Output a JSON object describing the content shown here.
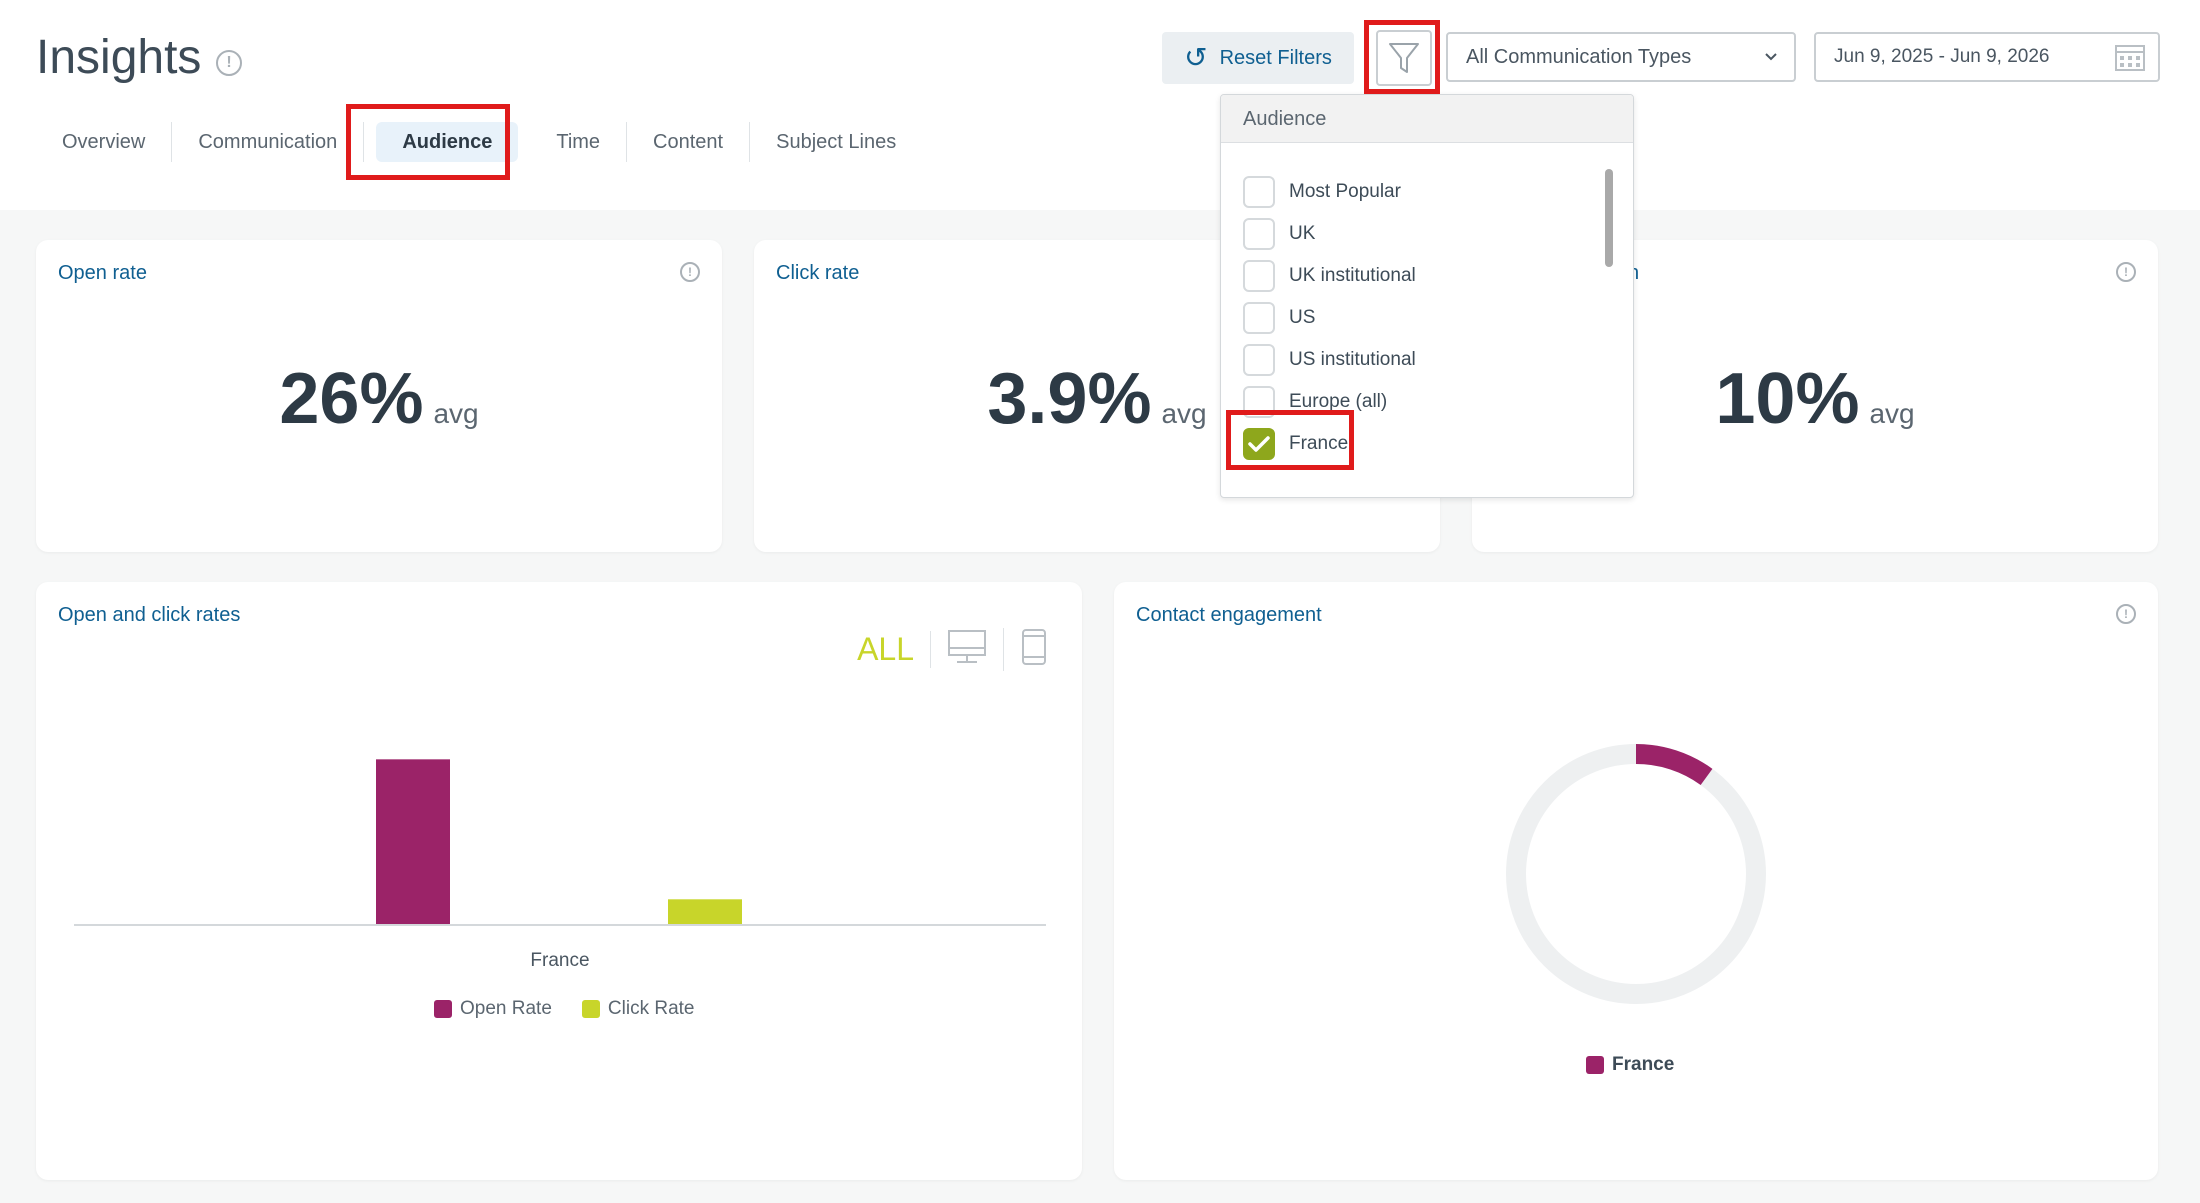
{
  "header": {
    "title": "Insights",
    "tabs": [
      {
        "label": "Overview"
      },
      {
        "label": "Communication"
      },
      {
        "label": "Audience"
      },
      {
        "label": "Time"
      },
      {
        "label": "Content"
      },
      {
        "label": "Subject Lines"
      }
    ],
    "reset_label": "Reset Filters",
    "comm_type_value": "All Communication Types",
    "date_range": "Jun 9, 2025 - Jun 9, 2026"
  },
  "dropdown": {
    "title": "Audience",
    "items": [
      {
        "label": "Most Popular",
        "checked": false
      },
      {
        "label": "UK",
        "checked": false
      },
      {
        "label": "UK institutional",
        "checked": false
      },
      {
        "label": "US",
        "checked": false
      },
      {
        "label": "US institutional",
        "checked": false
      },
      {
        "label": "Europe (all)",
        "checked": false
      },
      {
        "label": "France",
        "checked": true
      }
    ]
  },
  "stats": [
    {
      "title": "Open rate",
      "value": "26%",
      "suffix": "avg"
    },
    {
      "title": "Click rate",
      "value": "3.9%",
      "suffix": "avg"
    },
    {
      "title": "n",
      "value": "10%",
      "suffix": "avg"
    }
  ],
  "open_click_card": {
    "title": "Open and click rates",
    "device_all": "ALL"
  },
  "engagement_card": {
    "title": "Contact engagement"
  },
  "colors": {
    "open_rate": "#9b2368",
    "click_rate": "#c8d52a",
    "accent_blue": "#0f5f91",
    "check_green": "#8ea71c"
  },
  "chart_data": [
    {
      "type": "bar",
      "categories": [
        "France"
      ],
      "series": [
        {
          "name": "Open Rate",
          "values": [
            26
          ]
        },
        {
          "name": "Click Rate",
          "values": [
            3.9
          ]
        }
      ],
      "title": "Open and click rates",
      "xlabel": "",
      "ylabel": "",
      "ylim": [
        0,
        30
      ],
      "grid": false,
      "legend": "bottom"
    },
    {
      "type": "pie",
      "categories": [
        "France"
      ],
      "values": [
        10
      ],
      "total": 100,
      "title": "Contact engagement",
      "legend": "bottom"
    }
  ]
}
